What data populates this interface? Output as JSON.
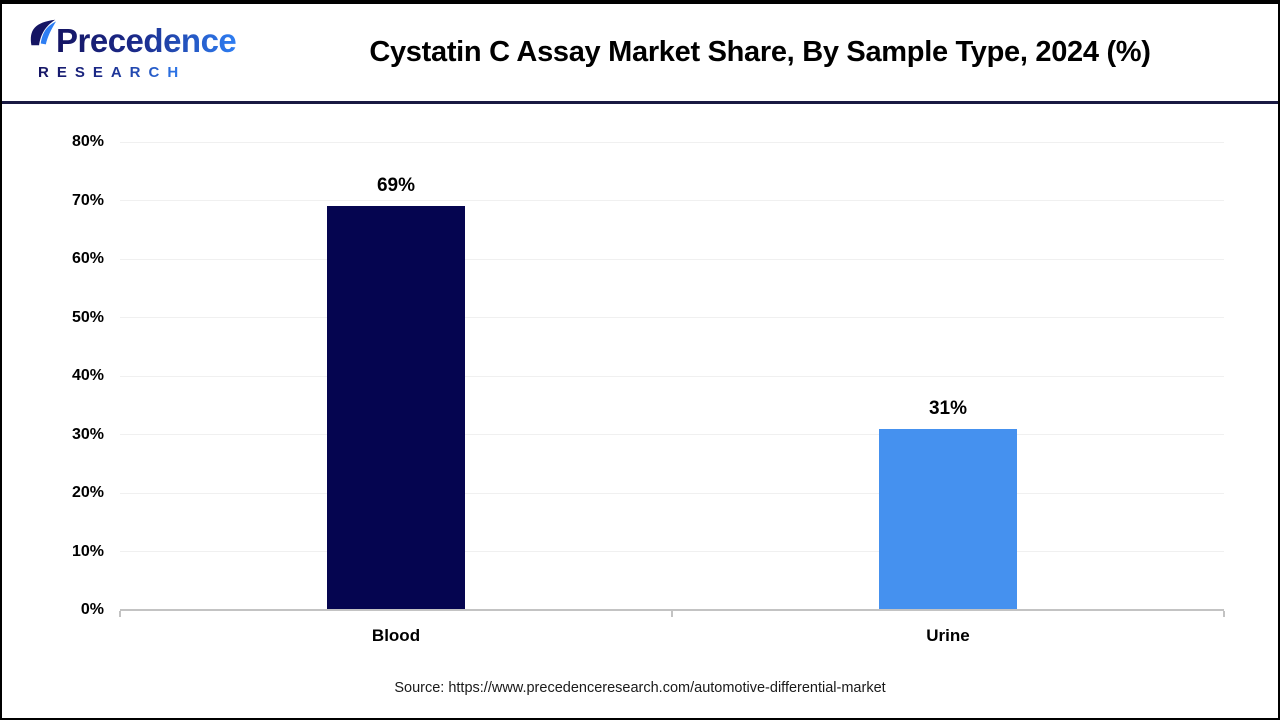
{
  "header": {
    "logo_line1": "Precedence",
    "logo_line2": "RESEARCH",
    "title": "Cystatin C Assay Market Share, By Sample Type, 2024 (%)"
  },
  "chart_data": {
    "type": "bar",
    "title": "Cystatin C Assay Market Share, By Sample Type, 2024 (%)",
    "categories": [
      "Blood",
      "Urine"
    ],
    "values": [
      69,
      31
    ],
    "value_labels": [
      "69%",
      "31%"
    ],
    "bar_colors": [
      "#050550",
      "#4591EF"
    ],
    "xlabel": "",
    "ylabel": "",
    "ylim": [
      0,
      80
    ],
    "ytick_step": 10,
    "ytick_labels": [
      "0%",
      "10%",
      "20%",
      "30%",
      "40%",
      "50%",
      "60%",
      "70%",
      "80%"
    ],
    "grid": true,
    "legend": false
  },
  "footer": {
    "source": "Source: https://www.precedenceresearch.com/automotive-differential-market"
  },
  "colors": {
    "blood_bar": "#050550",
    "urine_bar": "#4591EF",
    "axis_line": "#C3C3C3",
    "gridline": "#F0F0F0",
    "header_separator": "#191942",
    "logo_navy": "#151563",
    "logo_blue": "#2E7EF3"
  }
}
